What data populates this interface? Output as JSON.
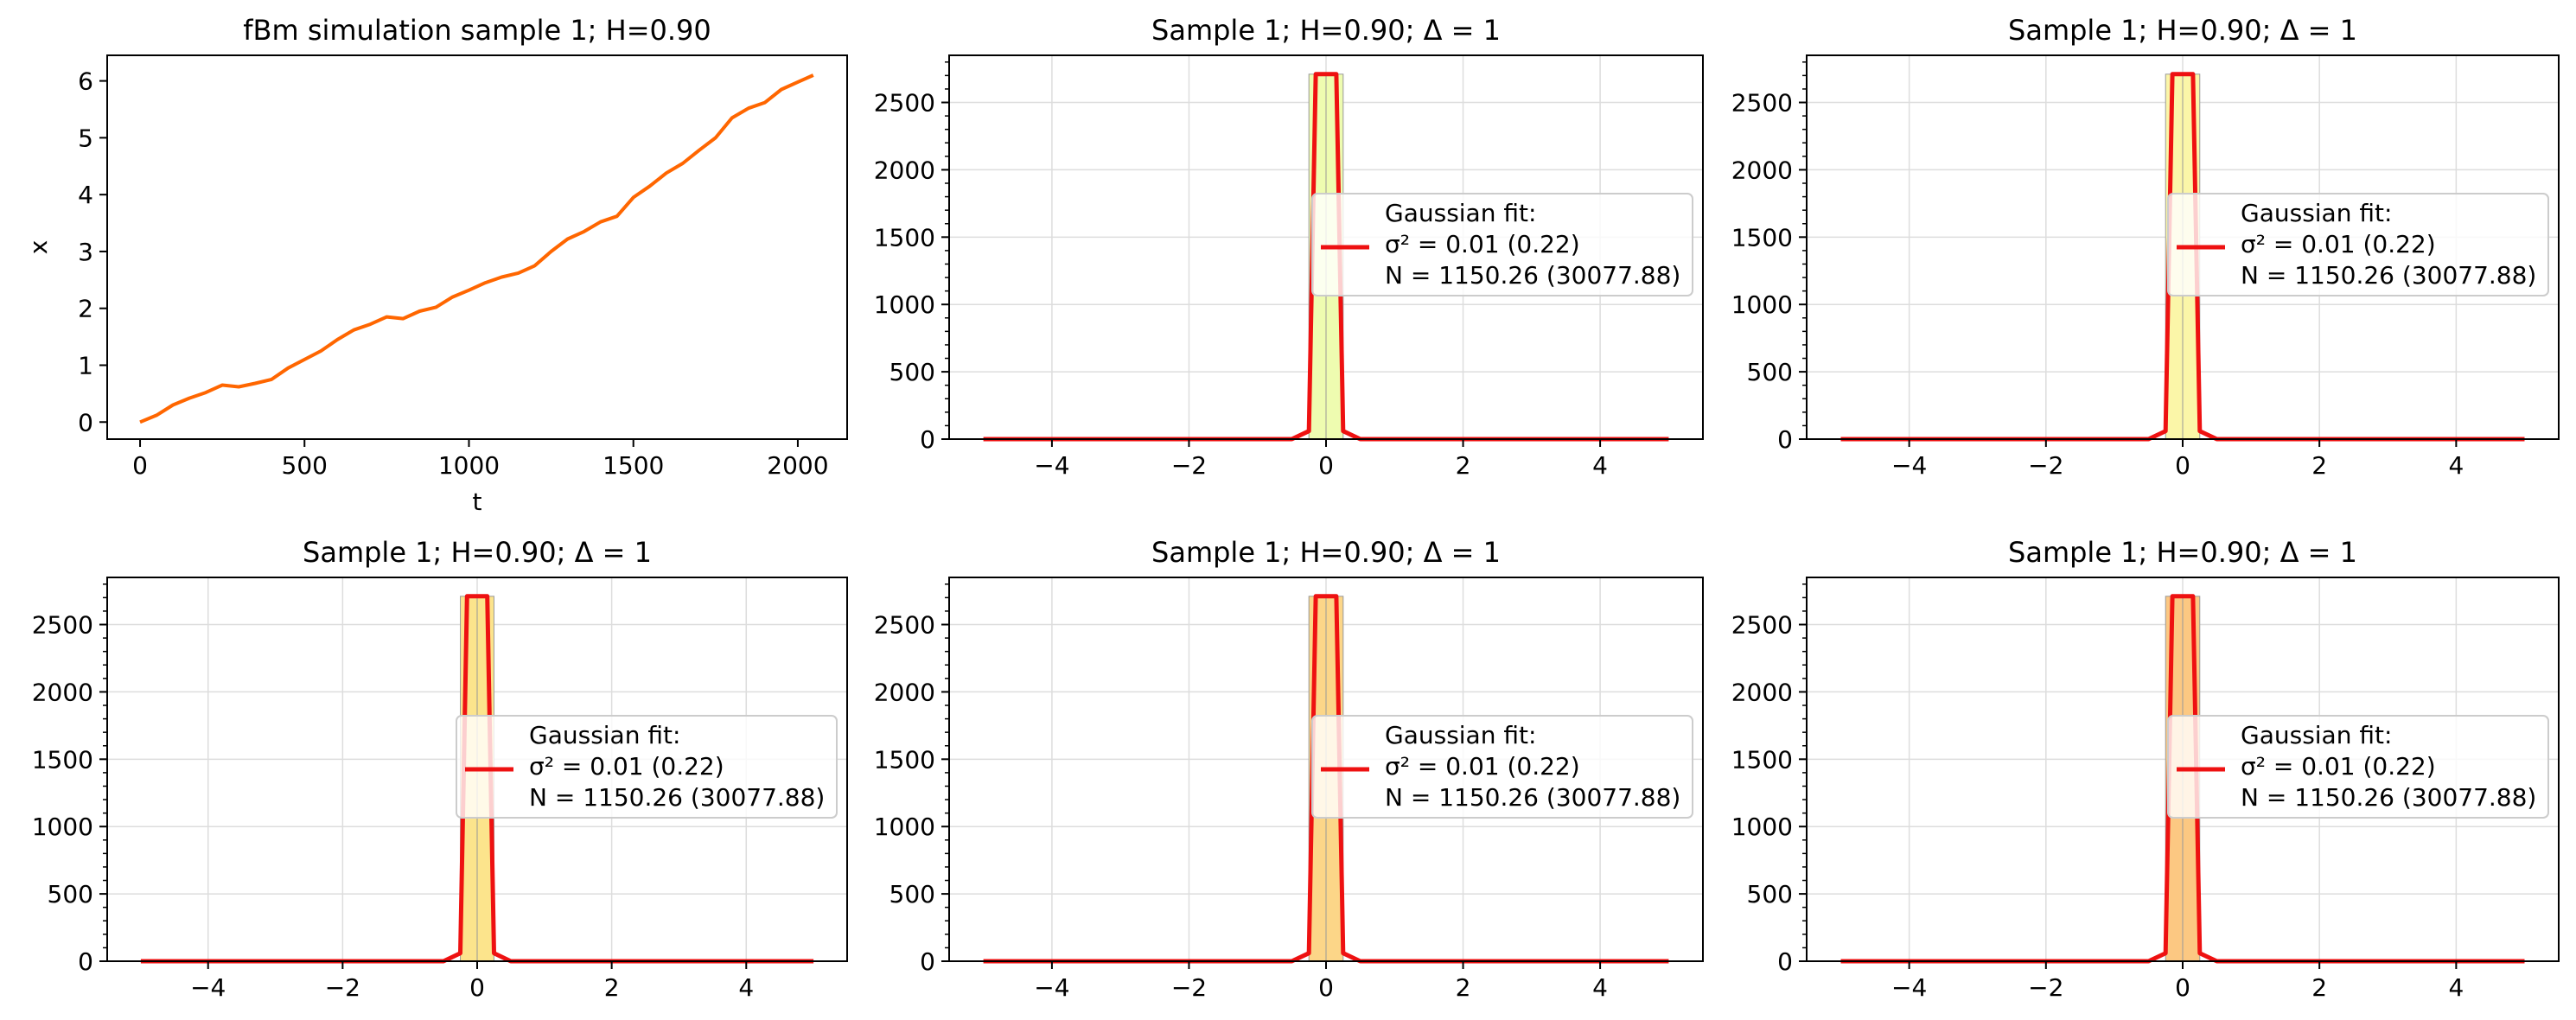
{
  "figure": {
    "layout": "2 rows x 3 columns"
  },
  "chart_data": [
    {
      "type": "line",
      "title": "fBm simulation sample 1; H=0.90",
      "xlabel": "t",
      "ylabel": "x",
      "xlim": [
        -100,
        2150
      ],
      "ylim": [
        -0.3,
        6.45
      ],
      "xticks": [
        0,
        500,
        1000,
        1500,
        2000
      ],
      "yticks": [
        0,
        1,
        2,
        3,
        4,
        5,
        6
      ],
      "grid": false,
      "series": [
        {
          "color": "#ff6600",
          "x": [
            0,
            50,
            100,
            150,
            200,
            250,
            300,
            350,
            400,
            450,
            500,
            550,
            600,
            650,
            700,
            750,
            800,
            850,
            900,
            950,
            1000,
            1050,
            1100,
            1150,
            1200,
            1250,
            1300,
            1350,
            1400,
            1450,
            1500,
            1550,
            1600,
            1650,
            1700,
            1750,
            1800,
            1850,
            1900,
            1950,
            2000,
            2047
          ],
          "y": [
            0.0,
            0.12,
            0.3,
            0.42,
            0.52,
            0.65,
            0.62,
            0.68,
            0.75,
            0.95,
            1.1,
            1.25,
            1.45,
            1.62,
            1.72,
            1.85,
            1.82,
            1.95,
            2.02,
            2.2,
            2.32,
            2.45,
            2.55,
            2.62,
            2.75,
            3.0,
            3.22,
            3.35,
            3.52,
            3.62,
            3.95,
            4.15,
            4.38,
            4.55,
            4.78,
            5.0,
            5.35,
            5.52,
            5.62,
            5.85,
            5.98,
            6.1
          ]
        }
      ]
    },
    {
      "type": "area",
      "title": "Sample 1; H=0.90; Δ = 1",
      "xlim": [
        -5.5,
        5.5
      ],
      "ylim": [
        0,
        2850
      ],
      "xticks": [
        -4,
        -2,
        0,
        2,
        4
      ],
      "yticks": [
        0,
        500,
        1000,
        1500,
        2000,
        2500
      ],
      "grid": true,
      "legend_position": "center-right",
      "legend": [
        "Gaussian fit:",
        "σ² = 0.01 (0.22)",
        " N = 1150.26 (30077.88)"
      ],
      "hist_color": "#eefcb0",
      "fit_color": "#ee1111",
      "fit_x": [
        -5,
        -0.5,
        -0.25,
        -0.15,
        0.15,
        0.25,
        0.5,
        5
      ],
      "fit_y": [
        0,
        0,
        60,
        2710,
        2710,
        60,
        0,
        0
      ]
    },
    {
      "type": "area",
      "title": "Sample 1; H=0.90; Δ = 1",
      "xlim": [
        -5.5,
        5.5
      ],
      "ylim": [
        0,
        2850
      ],
      "xticks": [
        -4,
        -2,
        0,
        2,
        4
      ],
      "yticks": [
        0,
        500,
        1000,
        1500,
        2000,
        2500
      ],
      "grid": true,
      "legend_position": "center-right",
      "legend": [
        "Gaussian fit:",
        "σ² = 0.01 (0.22)",
        " N = 1150.26 (30077.88)"
      ],
      "hist_color": "#fbf6a8",
      "fit_color": "#ee1111",
      "fit_x": [
        -5,
        -0.5,
        -0.25,
        -0.15,
        0.15,
        0.25,
        0.5,
        5
      ],
      "fit_y": [
        0,
        0,
        60,
        2710,
        2710,
        60,
        0,
        0
      ]
    },
    {
      "type": "area",
      "title": "Sample 1; H=0.90; Δ = 1",
      "xlim": [
        -5.5,
        5.5
      ],
      "ylim": [
        0,
        2850
      ],
      "xticks": [
        -4,
        -2,
        0,
        2,
        4
      ],
      "yticks": [
        0,
        500,
        1000,
        1500,
        2000,
        2500
      ],
      "grid": true,
      "legend_position": "center-right",
      "legend": [
        "Gaussian fit:",
        "σ² = 0.01 (0.22)",
        " N = 1150.26 (30077.88)"
      ],
      "hist_color": "#fce48c",
      "fit_color": "#ee1111",
      "fit_x": [
        -5,
        -0.5,
        -0.25,
        -0.15,
        0.15,
        0.25,
        0.5,
        5
      ],
      "fit_y": [
        0,
        0,
        60,
        2710,
        2710,
        60,
        0,
        0
      ]
    },
    {
      "type": "area",
      "title": "Sample 1; H=0.90; Δ = 1",
      "xlim": [
        -5.5,
        5.5
      ],
      "ylim": [
        0,
        2850
      ],
      "xticks": [
        -4,
        -2,
        0,
        2,
        4
      ],
      "yticks": [
        0,
        500,
        1000,
        1500,
        2000,
        2500
      ],
      "grid": true,
      "legend_position": "center-right",
      "legend": [
        "Gaussian fit:",
        "σ² = 0.01 (0.22)",
        " N = 1150.26 (30077.88)"
      ],
      "hist_color": "#fcd688",
      "fit_color": "#ee1111",
      "fit_x": [
        -5,
        -0.5,
        -0.25,
        -0.15,
        0.15,
        0.25,
        0.5,
        5
      ],
      "fit_y": [
        0,
        0,
        60,
        2710,
        2710,
        60,
        0,
        0
      ]
    },
    {
      "type": "area",
      "title": "Sample 1; H=0.90; Δ = 1",
      "xlim": [
        -5.5,
        5.5
      ],
      "ylim": [
        0,
        2850
      ],
      "xticks": [
        -4,
        -2,
        0,
        2,
        4
      ],
      "yticks": [
        0,
        500,
        1000,
        1500,
        2000,
        2500
      ],
      "grid": true,
      "legend_position": "center-right",
      "legend": [
        "Gaussian fit:",
        "σ² = 0.01 (0.22)",
        " N = 1150.26 (30077.88)"
      ],
      "hist_color": "#fcc882",
      "fit_color": "#ee1111",
      "fit_x": [
        -5,
        -0.5,
        -0.25,
        -0.15,
        0.15,
        0.25,
        0.5,
        5
      ],
      "fit_y": [
        0,
        0,
        60,
        2710,
        2710,
        60,
        0,
        0
      ]
    }
  ]
}
